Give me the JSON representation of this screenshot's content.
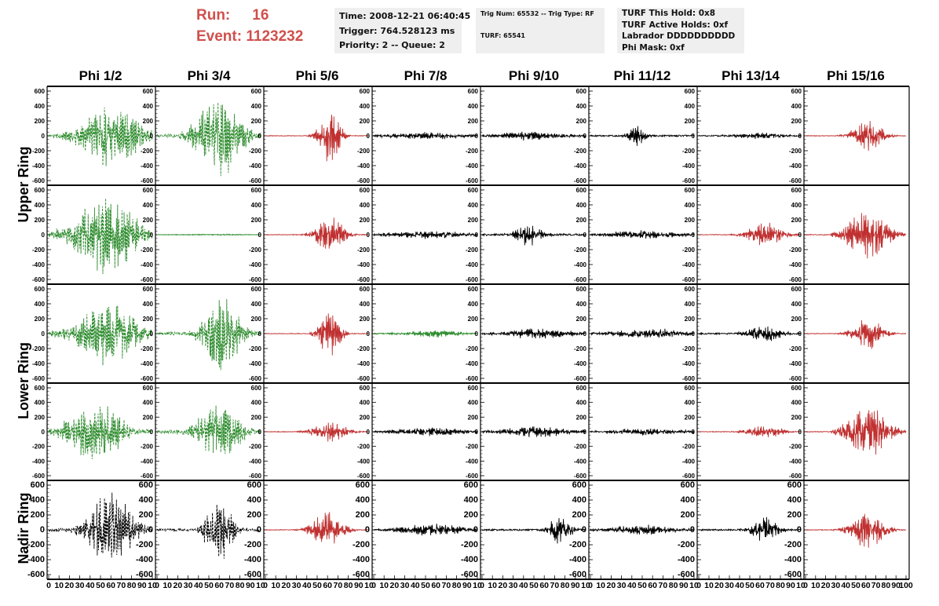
{
  "header": {
    "run_label": "Run:",
    "run_value": "16",
    "event_label": "Event:",
    "event_value": "1123232"
  },
  "info_boxes": {
    "time": "Time: 2008-12-21 06:40:45",
    "trigger": "Trigger: 764.528123 ms",
    "priority": "Priority: 2 -- Queue: 2",
    "trig_num": "Trig Num: 65532 -- Trig Type: RF",
    "turf": "TURF: 65541",
    "turf_hold": "TURF This Hold: 0x8",
    "turf_active": "TURF Active Holds: 0xf",
    "labrador": "Labrador DDDDDDDDDD",
    "phi_mask": "Phi Mask: 0xf"
  },
  "chart_data": {
    "type": "line",
    "title": "",
    "column_titles": [
      "Phi 1/2",
      "Phi 3/4",
      "Phi 5/6",
      "Phi 7/8",
      "Phi 9/10",
      "Phi 11/12",
      "Phi 13/14",
      "Phi 15/16"
    ],
    "row_titles": [
      "Upper Ring",
      "Lower Ring",
      "Nadir Ring"
    ],
    "xlim": [
      0,
      100
    ],
    "ylim": [
      -600,
      600
    ],
    "y_ticks": [
      -600,
      -400,
      -200,
      0,
      200,
      400,
      600
    ],
    "x_ticks": [
      0,
      10,
      20,
      30,
      40,
      50,
      60,
      70,
      80,
      90,
      100
    ],
    "x_tick_labels": [
      "0",
      "10",
      "20",
      "30",
      "40",
      "50",
      "60",
      "70",
      "80",
      "90",
      "10",
      "0",
      "10",
      "20",
      "30",
      "40",
      "50",
      "60",
      "70",
      "80",
      "90",
      "10",
      "0",
      "10",
      "20",
      "30",
      "40",
      "50",
      "60",
      "70",
      "80",
      "90",
      "10",
      "0",
      "10",
      "20",
      "30",
      "40",
      "50",
      "60",
      "70",
      "80",
      "90",
      "10",
      "0",
      "10",
      "20",
      "30",
      "40",
      "50",
      "60",
      "70",
      "80",
      "90",
      "10",
      "0",
      "10",
      "20",
      "30",
      "40",
      "50",
      "60",
      "70",
      "80",
      "90",
      "10",
      "0",
      "10",
      "20",
      "30",
      "40",
      "50",
      "60",
      "70",
      "80",
      "90",
      "10",
      "0",
      "10",
      "20",
      "30",
      "40",
      "50",
      "60",
      "70",
      "80",
      "90",
      "100"
    ],
    "colors": {
      "green": "#2a8a2a",
      "red": "#c03030",
      "black": "#000000"
    },
    "grid": false,
    "panels": [
      [
        {
          "color": "green",
          "dashed": true,
          "start": 5,
          "peak_center": 60,
          "peak_width": 35,
          "amplitude": 330,
          "noise": 40
        },
        {
          "color": "green",
          "dashed": true,
          "start": 0,
          "peak_center": 60,
          "peak_width": 25,
          "amplitude": 450,
          "noise": 40
        },
        {
          "color": "red",
          "dashed": false,
          "start": 30,
          "peak_center": 62,
          "peak_width": 12,
          "amplitude": 290,
          "noise": 8
        },
        {
          "color": "black",
          "dashed": false,
          "start": 0,
          "peak_center": 50,
          "peak_width": 50,
          "amplitude": 35,
          "noise": 20
        },
        {
          "color": "black",
          "dashed": false,
          "start": 0,
          "peak_center": 45,
          "peak_width": 40,
          "amplitude": 45,
          "noise": 20
        },
        {
          "color": "black",
          "dashed": false,
          "start": 0,
          "peak_center": 45,
          "peak_width": 10,
          "amplitude": 120,
          "noise": 20
        },
        {
          "color": "black",
          "dashed": false,
          "start": 0,
          "peak_center": 60,
          "peak_width": 30,
          "amplitude": 35,
          "noise": 15
        },
        {
          "color": "red",
          "dashed": false,
          "start": 20,
          "peak_center": 62,
          "peak_width": 18,
          "amplitude": 160,
          "noise": 8
        }
      ],
      [
        {
          "color": "green",
          "dashed": true,
          "start": 0,
          "peak_center": 55,
          "peak_width": 35,
          "amplitude": 420,
          "noise": 60
        },
        {
          "color": "green",
          "dashed": false,
          "start": 0,
          "peak_center": 50,
          "peak_width": 50,
          "amplitude": 6,
          "noise": 3
        },
        {
          "color": "red",
          "dashed": false,
          "start": 30,
          "peak_center": 62,
          "peak_width": 16,
          "amplitude": 200,
          "noise": 8
        },
        {
          "color": "black",
          "dashed": false,
          "start": 0,
          "peak_center": 50,
          "peak_width": 50,
          "amplitude": 40,
          "noise": 20
        },
        {
          "color": "black",
          "dashed": false,
          "start": 0,
          "peak_center": 45,
          "peak_width": 15,
          "amplitude": 120,
          "noise": 25
        },
        {
          "color": "black",
          "dashed": false,
          "start": 0,
          "peak_center": 50,
          "peak_width": 40,
          "amplitude": 45,
          "noise": 20
        },
        {
          "color": "red",
          "dashed": false,
          "start": 20,
          "peak_center": 65,
          "peak_width": 20,
          "amplitude": 130,
          "noise": 8
        },
        {
          "color": "red",
          "dashed": false,
          "start": 25,
          "peak_center": 62,
          "peak_width": 25,
          "amplitude": 260,
          "noise": 10
        }
      ],
      [
        {
          "color": "green",
          "dashed": true,
          "start": 0,
          "peak_center": 55,
          "peak_width": 35,
          "amplitude": 360,
          "noise": 50
        },
        {
          "color": "green",
          "dashed": true,
          "start": 0,
          "peak_center": 62,
          "peak_width": 20,
          "amplitude": 420,
          "noise": 40
        },
        {
          "color": "red",
          "dashed": false,
          "start": 30,
          "peak_center": 62,
          "peak_width": 12,
          "amplitude": 260,
          "noise": 8
        },
        {
          "color": "green",
          "dashed": false,
          "start": 0,
          "peak_center": 60,
          "peak_width": 30,
          "amplitude": 40,
          "noise": 15
        },
        {
          "color": "black",
          "dashed": false,
          "start": 0,
          "peak_center": 55,
          "peak_width": 40,
          "amplitude": 55,
          "noise": 20
        },
        {
          "color": "black",
          "dashed": false,
          "start": 0,
          "peak_center": 55,
          "peak_width": 40,
          "amplitude": 55,
          "noise": 20
        },
        {
          "color": "black",
          "dashed": false,
          "start": 0,
          "peak_center": 65,
          "peak_width": 20,
          "amplitude": 90,
          "noise": 20
        },
        {
          "color": "red",
          "dashed": false,
          "start": 20,
          "peak_center": 62,
          "peak_width": 18,
          "amplitude": 170,
          "noise": 8
        }
      ],
      [
        {
          "color": "green",
          "dashed": true,
          "start": 0,
          "peak_center": 45,
          "peak_width": 30,
          "amplitude": 340,
          "noise": 50
        },
        {
          "color": "green",
          "dashed": true,
          "start": 0,
          "peak_center": 60,
          "peak_width": 25,
          "amplitude": 300,
          "noise": 40
        },
        {
          "color": "red",
          "dashed": false,
          "start": 30,
          "peak_center": 62,
          "peak_width": 20,
          "amplitude": 110,
          "noise": 8
        },
        {
          "color": "black",
          "dashed": false,
          "start": 0,
          "peak_center": 55,
          "peak_width": 40,
          "amplitude": 45,
          "noise": 20
        },
        {
          "color": "black",
          "dashed": false,
          "start": 0,
          "peak_center": 50,
          "peak_width": 40,
          "amplitude": 60,
          "noise": 20
        },
        {
          "color": "black",
          "dashed": false,
          "start": 0,
          "peak_center": 55,
          "peak_width": 40,
          "amplitude": 40,
          "noise": 15
        },
        {
          "color": "red",
          "dashed": false,
          "start": 20,
          "peak_center": 65,
          "peak_width": 20,
          "amplitude": 80,
          "noise": 8
        },
        {
          "color": "red",
          "dashed": false,
          "start": 25,
          "peak_center": 62,
          "peak_width": 25,
          "amplitude": 280,
          "noise": 10
        }
      ],
      [
        {
          "color": "black",
          "dashed": true,
          "start": 20,
          "peak_center": 60,
          "peak_width": 25,
          "amplitude": 420,
          "noise": 40
        },
        {
          "color": "black",
          "dashed": true,
          "start": 20,
          "peak_center": 60,
          "peak_width": 15,
          "amplitude": 380,
          "noise": 30
        },
        {
          "color": "red",
          "dashed": false,
          "start": 25,
          "peak_center": 60,
          "peak_width": 18,
          "amplitude": 200,
          "noise": 8
        },
        {
          "color": "black",
          "dashed": false,
          "start": 0,
          "peak_center": 55,
          "peak_width": 35,
          "amplitude": 70,
          "noise": 20
        },
        {
          "color": "black",
          "dashed": false,
          "start": 0,
          "peak_center": 75,
          "peak_width": 12,
          "amplitude": 160,
          "noise": 20
        },
        {
          "color": "black",
          "dashed": false,
          "start": 0,
          "peak_center": 50,
          "peak_width": 40,
          "amplitude": 50,
          "noise": 20
        },
        {
          "color": "black",
          "dashed": false,
          "start": 0,
          "peak_center": 65,
          "peak_width": 15,
          "amplitude": 150,
          "noise": 20
        },
        {
          "color": "red",
          "dashed": false,
          "start": 20,
          "peak_center": 62,
          "peak_width": 20,
          "amplitude": 200,
          "noise": 8
        }
      ]
    ]
  }
}
